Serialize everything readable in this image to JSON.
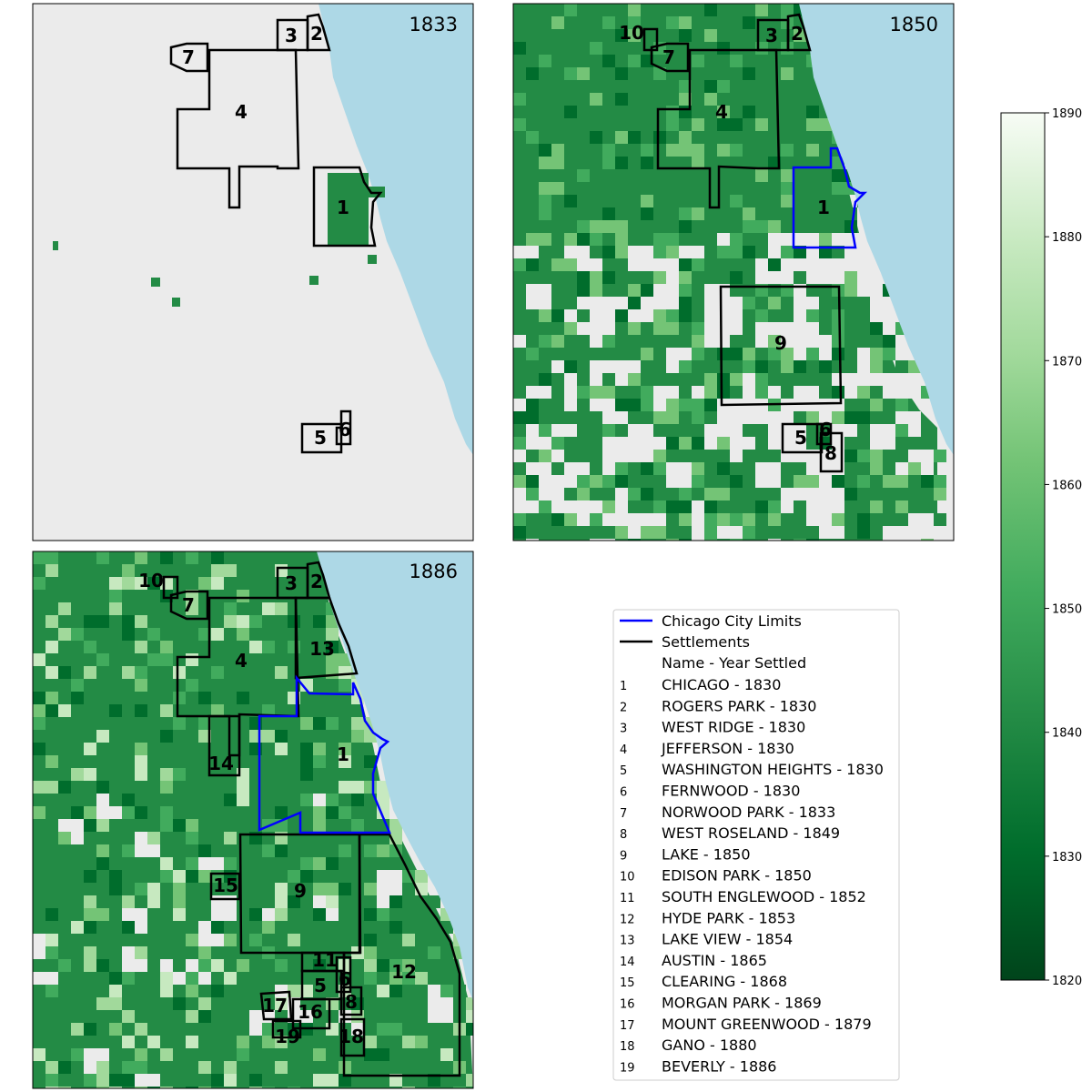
{
  "colors": {
    "land": "#ebebeb",
    "water": "#add8e6",
    "settlement_line": "#000000",
    "city_limits_line": "#0000ff",
    "green_dark": "#00441b",
    "green_light": "#f7fcf5"
  },
  "panels": [
    {
      "id": "p1833",
      "year_label": "1833"
    },
    {
      "id": "p1850",
      "year_label": "1850"
    },
    {
      "id": "p1886",
      "year_label": "1886"
    }
  ],
  "colorbar": {
    "min": 1820,
    "max": 1890,
    "ticks": [
      "1820",
      "1830",
      "1840",
      "1850",
      "1860",
      "1870",
      "1880",
      "1890"
    ],
    "colormap": "Greens_r"
  },
  "legend": {
    "lines": [
      {
        "label": "Chicago City Limits",
        "color": "#0000ff"
      },
      {
        "label": "Settlements",
        "color": "#000000"
      }
    ],
    "header": "Name - Year Settled",
    "entries": [
      {
        "num": "1",
        "label": "CHICAGO - 1830"
      },
      {
        "num": "2",
        "label": "ROGERS PARK - 1830"
      },
      {
        "num": "3",
        "label": "WEST RIDGE - 1830"
      },
      {
        "num": "4",
        "label": "JEFFERSON - 1830"
      },
      {
        "num": "5",
        "label": "WASHINGTON HEIGHTS - 1830"
      },
      {
        "num": "6",
        "label": "FERNWOOD - 1830"
      },
      {
        "num": "7",
        "label": "NORWOOD PARK - 1833"
      },
      {
        "num": "8",
        "label": "WEST ROSELAND - 1849"
      },
      {
        "num": "9",
        "label": "LAKE - 1850"
      },
      {
        "num": "10",
        "label": "EDISON PARK - 1850"
      },
      {
        "num": "11",
        "label": "SOUTH ENGLEWOOD - 1852"
      },
      {
        "num": "12",
        "label": "HYDE PARK - 1853"
      },
      {
        "num": "13",
        "label": "LAKE VIEW - 1854"
      },
      {
        "num": "14",
        "label": "AUSTIN - 1865"
      },
      {
        "num": "15",
        "label": "CLEARING - 1868"
      },
      {
        "num": "16",
        "label": "MORGAN PARK - 1869"
      },
      {
        "num": "17",
        "label": "MOUNT GREENWOOD - 1879"
      },
      {
        "num": "18",
        "label": "GANO - 1880"
      },
      {
        "num": "19",
        "label": "BEVERLY - 1886"
      }
    ]
  }
}
